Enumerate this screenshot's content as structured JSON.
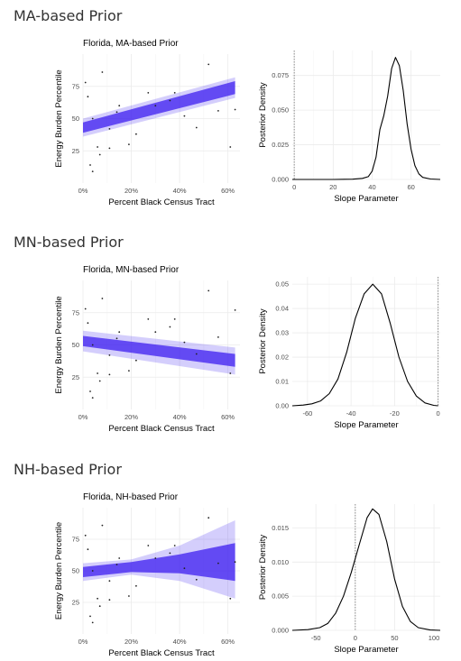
{
  "colors": {
    "band": "#3d1ef0",
    "density_line": "#000000",
    "grid": "#ebebeb",
    "ref_line": "#8c8c8c",
    "points": "#222222"
  },
  "sections": [
    {
      "heading": "MA-based Prior",
      "chart_data": [
        {
          "type": "line",
          "title": "Florida, MA-based Prior",
          "xlabel": "Percent Black Census Tract",
          "ylabel": "Energy Burden Percentile",
          "xlim": [
            0,
            65
          ],
          "ylim": [
            0,
            100
          ],
          "xticks": [
            0,
            20,
            40,
            60
          ],
          "xtick_labels": [
            "0%",
            "20%",
            "40%",
            "60%"
          ],
          "yticks": [
            25,
            50,
            75
          ],
          "ytick_labels": [
            "25",
            "50",
            "75"
          ],
          "band_inner_low": [
            [
              0,
              39
            ],
            [
              63,
              69
            ]
          ],
          "band_inner_high": [
            [
              0,
              47
            ],
            [
              63,
              79
            ]
          ],
          "band_outer_low": [
            [
              0,
              36
            ],
            [
              63,
              66
            ]
          ],
          "band_outer_high": [
            [
              0,
              50
            ],
            [
              63,
              82
            ]
          ],
          "points": [
            [
              1,
              78
            ],
            [
              2,
              67
            ],
            [
              3,
              14
            ],
            [
              4,
              9
            ],
            [
              4,
              50
            ],
            [
              6,
              28
            ],
            [
              7,
              22
            ],
            [
              8,
              86
            ],
            [
              11,
              42
            ],
            [
              11,
              27
            ],
            [
              14,
              55
            ],
            [
              15,
              60
            ],
            [
              19,
              30
            ],
            [
              22,
              38
            ],
            [
              27,
              70
            ],
            [
              30,
              60
            ],
            [
              36,
              64
            ],
            [
              38,
              70
            ],
            [
              42,
              52
            ],
            [
              47,
              43
            ],
            [
              52,
              92
            ],
            [
              56,
              56
            ],
            [
              61,
              28
            ],
            [
              63,
              57
            ]
          ]
        },
        {
          "type": "line",
          "title": "",
          "xlabel": "Slope Parameter",
          "ylabel": "Posterior Density",
          "xlim": [
            -1,
            75
          ],
          "ylim": [
            0,
            0.093
          ],
          "xticks": [
            0,
            20,
            40,
            60
          ],
          "xtick_labels": [
            "0",
            "20",
            "40",
            "60"
          ],
          "yticks": [
            0,
            0.025,
            0.05,
            0.075
          ],
          "ytick_labels": [
            "0.000",
            "0.025",
            "0.050",
            "0.075"
          ],
          "ref_line_x": 0,
          "x": [
            -1,
            10,
            20,
            30,
            35,
            38,
            40,
            42,
            44,
            46,
            48,
            50,
            52,
            54,
            56,
            58,
            60,
            62,
            64,
            66,
            70,
            75
          ],
          "y": [
            0,
            0,
            0,
            0.0002,
            0.0008,
            0.002,
            0.006,
            0.016,
            0.036,
            0.046,
            0.06,
            0.08,
            0.088,
            0.082,
            0.064,
            0.04,
            0.022,
            0.01,
            0.004,
            0.0015,
            0.0003,
            0
          ]
        }
      ]
    },
    {
      "heading": "MN-based Prior",
      "chart_data": [
        {
          "type": "line",
          "title": "Florida, MN-based Prior",
          "xlabel": "Percent Black Census Tract",
          "ylabel": "Energy Burden Percentile",
          "xlim": [
            0,
            65
          ],
          "ylim": [
            0,
            100
          ],
          "xticks": [
            0,
            20,
            40,
            60
          ],
          "xtick_labels": [
            "0%",
            "20%",
            "40%",
            "60%"
          ],
          "yticks": [
            25,
            50,
            75
          ],
          "ytick_labels": [
            "25",
            "50",
            "75"
          ],
          "band_inner_low": [
            [
              0,
              49
            ],
            [
              63,
              33
            ]
          ],
          "band_inner_high": [
            [
              0,
              57
            ],
            [
              63,
              43
            ]
          ],
          "band_outer_low": [
            [
              0,
              45
            ],
            [
              63,
              27
            ]
          ],
          "band_outer_high": [
            [
              0,
              61
            ],
            [
              63,
              48
            ]
          ],
          "points": [
            [
              1,
              78
            ],
            [
              2,
              67
            ],
            [
              3,
              14
            ],
            [
              4,
              9
            ],
            [
              4,
              50
            ],
            [
              6,
              28
            ],
            [
              7,
              22
            ],
            [
              8,
              86
            ],
            [
              11,
              42
            ],
            [
              11,
              27
            ],
            [
              14,
              55
            ],
            [
              15,
              60
            ],
            [
              19,
              30
            ],
            [
              22,
              38
            ],
            [
              27,
              70
            ],
            [
              30,
              60
            ],
            [
              36,
              64
            ],
            [
              38,
              70
            ],
            [
              42,
              52
            ],
            [
              47,
              43
            ],
            [
              52,
              92
            ],
            [
              56,
              56
            ],
            [
              61,
              28
            ],
            [
              63,
              77
            ]
          ]
        },
        {
          "type": "line",
          "title": "",
          "xlabel": "Slope Parameter",
          "ylabel": "Posterior Density",
          "xlim": [
            -67,
            1
          ],
          "ylim": [
            0,
            0.053
          ],
          "xticks": [
            -60,
            -40,
            -20,
            0
          ],
          "xtick_labels": [
            "-60",
            "-40",
            "-20",
            "0"
          ],
          "yticks": [
            0,
            0.01,
            0.02,
            0.03,
            0.04,
            0.05
          ],
          "ytick_labels": [
            "0.00",
            "0.01",
            "0.02",
            "0.03",
            "0.04",
            "0.05"
          ],
          "ref_line_x": 0,
          "x": [
            -67,
            -62,
            -58,
            -54,
            -50,
            -46,
            -42,
            -38,
            -34,
            -30,
            -26,
            -22,
            -18,
            -14,
            -10,
            -6,
            -2,
            0
          ],
          "y": [
            0,
            0.0003,
            0.0008,
            0.002,
            0.005,
            0.011,
            0.022,
            0.036,
            0.046,
            0.05,
            0.046,
            0.034,
            0.02,
            0.01,
            0.004,
            0.0012,
            0.0002,
            0
          ]
        }
      ]
    },
    {
      "heading": "NH-based Prior",
      "chart_data": [
        {
          "type": "line",
          "title": "Florida, NH-based Prior",
          "xlabel": "Percent Black Census Tract",
          "ylabel": "Energy Burden Percentile",
          "xlim": [
            0,
            65
          ],
          "ylim": [
            0,
            100
          ],
          "xticks": [
            0,
            20,
            40,
            60
          ],
          "xtick_labels": [
            "0%",
            "20%",
            "40%",
            "60%"
          ],
          "yticks": [
            25,
            50,
            75
          ],
          "ytick_labels": [
            "25",
            "50",
            "75"
          ],
          "band_inner_low": [
            [
              0,
              45
            ],
            [
              20,
              49
            ],
            [
              40,
              48
            ],
            [
              63,
              42
            ]
          ],
          "band_inner_high": [
            [
              0,
              53
            ],
            [
              20,
              57
            ],
            [
              40,
              63
            ],
            [
              63,
              72
            ]
          ],
          "band_outer_low": [
            [
              0,
              42
            ],
            [
              20,
              47
            ],
            [
              40,
              42
            ],
            [
              63,
              28
            ]
          ],
          "band_outer_high": [
            [
              0,
              56
            ],
            [
              20,
              59
            ],
            [
              40,
              70
            ],
            [
              63,
              90
            ]
          ],
          "points": [
            [
              1,
              78
            ],
            [
              2,
              67
            ],
            [
              3,
              14
            ],
            [
              4,
              9
            ],
            [
              4,
              50
            ],
            [
              6,
              28
            ],
            [
              7,
              22
            ],
            [
              8,
              86
            ],
            [
              11,
              42
            ],
            [
              11,
              27
            ],
            [
              14,
              55
            ],
            [
              15,
              60
            ],
            [
              19,
              30
            ],
            [
              22,
              38
            ],
            [
              27,
              70
            ],
            [
              30,
              60
            ],
            [
              36,
              64
            ],
            [
              38,
              70
            ],
            [
              42,
              52
            ],
            [
              47,
              43
            ],
            [
              52,
              92
            ],
            [
              56,
              56
            ],
            [
              61,
              28
            ],
            [
              63,
              57
            ]
          ]
        },
        {
          "type": "line",
          "title": "",
          "xlabel": "Slope Parameter",
          "ylabel": "Posterior Density",
          "xlim": [
            -80,
            108
          ],
          "ylim": [
            0,
            0.0185
          ],
          "xticks": [
            -50,
            0,
            50,
            100
          ],
          "xtick_labels": [
            "-50",
            "0",
            "50",
            "100"
          ],
          "yticks": [
            0,
            0.005,
            0.01,
            0.015
          ],
          "ytick_labels": [
            "0.000",
            "0.005",
            "0.010",
            "0.015"
          ],
          "ref_line_x": 0,
          "x": [
            -80,
            -60,
            -45,
            -35,
            -25,
            -15,
            -5,
            5,
            15,
            22,
            30,
            40,
            50,
            60,
            70,
            80,
            95,
            108
          ],
          "y": [
            0,
            0.0001,
            0.0004,
            0.001,
            0.0025,
            0.005,
            0.0085,
            0.0125,
            0.0165,
            0.0178,
            0.017,
            0.013,
            0.0075,
            0.0035,
            0.0013,
            0.0004,
            5e-05,
            0
          ]
        }
      ]
    }
  ]
}
